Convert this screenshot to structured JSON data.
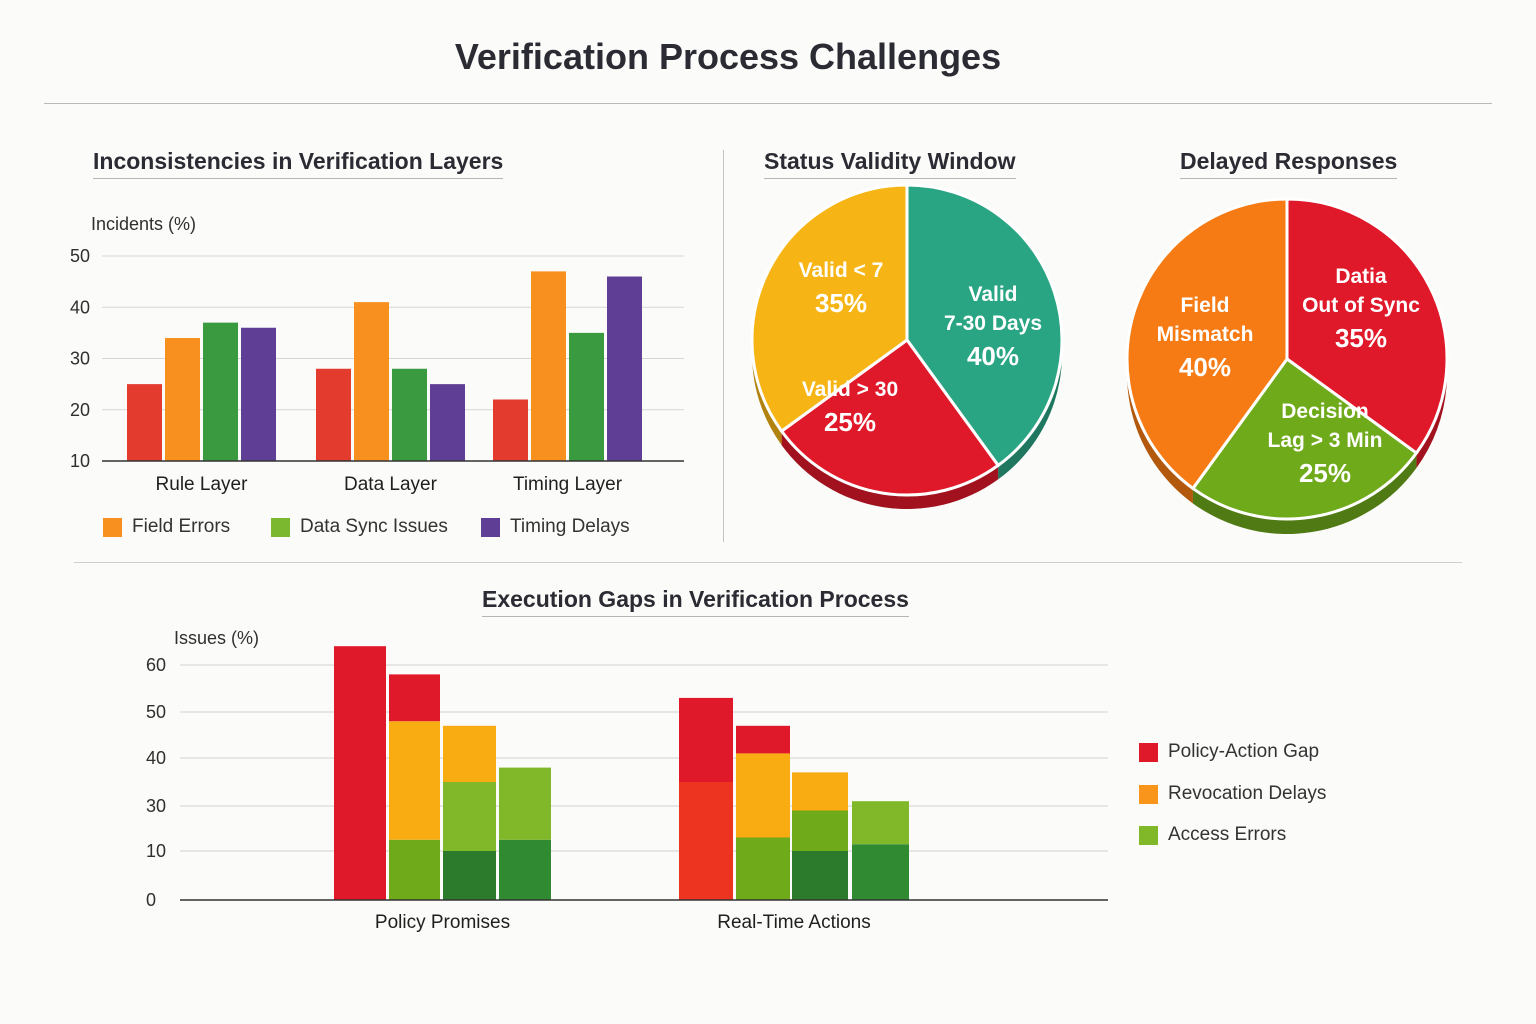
{
  "title": "Verification Process Challenges",
  "colors": {
    "red": "#e33b2e",
    "orange": "#f7901e",
    "green": "#3a9a40",
    "lime": "#7cb82f",
    "purple": "#5f3f96",
    "teal": "#2aa583",
    "amber": "#f7b515",
    "crimson": "#e0192a"
  },
  "chart_data": [
    {
      "type": "bar",
      "title": "Inconsistencies in Verification Layers",
      "ylabel": "Incidents (%)",
      "yticks": [
        10,
        20,
        30,
        40,
        50
      ],
      "ylim": [
        10,
        50
      ],
      "categories": [
        "Rule Layer",
        "Data Layer",
        "Timing Layer"
      ],
      "series": [
        {
          "values": [
            25,
            28,
            22
          ],
          "color": "#e33b2e"
        },
        {
          "values": [
            34,
            41,
            47
          ],
          "color": "#f7901e"
        },
        {
          "values": [
            37,
            28,
            35
          ],
          "color": "#3a9a40"
        },
        {
          "values": [
            36,
            25,
            46
          ],
          "color": "#5f3f96"
        }
      ],
      "legend": [
        {
          "name": "Field Errors",
          "color": "#f7901e"
        },
        {
          "name": "Data Sync Issues",
          "color": "#7cb82f"
        },
        {
          "name": "Timing Delays",
          "color": "#5f3f96"
        }
      ],
      "grid": true
    },
    {
      "type": "pie",
      "title": "Status Validity Window",
      "slices": [
        {
          "lines": [
            "Valid",
            "7-30 Days"
          ],
          "pct": "40%",
          "value": 40,
          "color": "#2aa583"
        },
        {
          "lines": [
            "Valid > 30"
          ],
          "pct": "25%",
          "value": 25,
          "color": "#e0192a"
        },
        {
          "lines": [
            "Valid < 7"
          ],
          "pct": "35%",
          "value": 35,
          "color": "#f7b515"
        }
      ]
    },
    {
      "type": "pie",
      "title": "Delayed Responses",
      "slices": [
        {
          "lines": [
            "Datia",
            "Out of Sync"
          ],
          "pct": "35%",
          "value": 35,
          "color": "#e0192a"
        },
        {
          "lines": [
            "Decision",
            "Lag > 3 Min"
          ],
          "pct": "25%",
          "value": 25,
          "color": "#6faa1a"
        },
        {
          "lines": [
            "Field",
            "Mismatch"
          ],
          "pct": "40%",
          "value": 40,
          "color": "#f77b14"
        }
      ]
    },
    {
      "type": "bar",
      "title": "Execution Gaps in Verification Process",
      "ylabel": "Issues (%)",
      "yticks": [
        0,
        10,
        30,
        40,
        50,
        60
      ],
      "ylim": [
        0,
        60
      ],
      "categories": [
        "Policy Promises",
        "Real-Time Actions"
      ],
      "groups": [
        [
          [
            {
              "v": 64,
              "color": "#e0192a"
            }
          ],
          [
            {
              "v": 15,
              "color": "#6faa1a"
            },
            {
              "v": 48,
              "color": "#f9ab12"
            },
            {
              "v": 58,
              "color": "#e0192a"
            }
          ],
          [
            {
              "v": 10,
              "color": "#2c7a2c"
            },
            {
              "v": 35,
              "color": "#80b82a"
            },
            {
              "v": 47,
              "color": "#f9ab12"
            }
          ],
          [
            {
              "v": 15,
              "color": "#2f8a32"
            },
            {
              "v": 38,
              "color": "#80b82a"
            }
          ]
        ],
        [
          [
            {
              "v": 35,
              "color": "#ec3421"
            },
            {
              "v": 53,
              "color": "#e0192a"
            }
          ],
          [
            {
              "v": 16,
              "color": "#6faa1a"
            },
            {
              "v": 41,
              "color": "#f9ab12"
            },
            {
              "v": 47,
              "color": "#e0192a"
            }
          ],
          [
            {
              "v": 10,
              "color": "#2c7a2c"
            },
            {
              "v": 28,
              "color": "#6faa1a"
            },
            {
              "v": 37,
              "color": "#f9ab12"
            }
          ],
          [
            {
              "v": 13,
              "color": "#2f8a32"
            },
            {
              "v": 31,
              "color": "#80b82a"
            }
          ]
        ]
      ],
      "legend": [
        {
          "name": "Policy-Action Gap",
          "color": "#e0192a"
        },
        {
          "name": "Revocation Delays",
          "color": "#f9951a"
        },
        {
          "name": "Access Errors",
          "color": "#80b82a"
        }
      ],
      "grid": true
    }
  ]
}
